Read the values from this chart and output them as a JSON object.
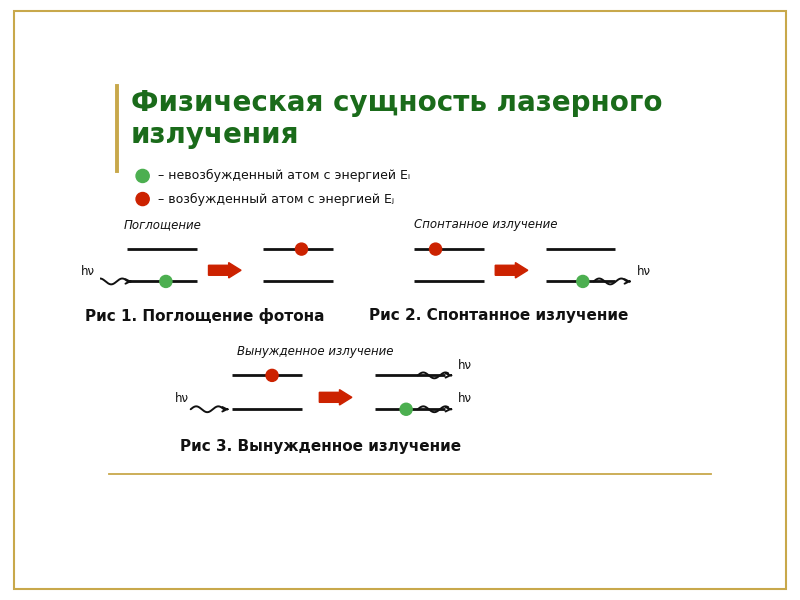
{
  "title_line1": "Физическая сущность лазерного",
  "title_line2": "излучения",
  "title_color": "#1a6b1a",
  "title_fontsize": 20,
  "legend1_text": " – невозбужденный атом с энергией Eᵢ",
  "legend2_text": " – возбужденный атом с энергией Eⱼ",
  "fig1_label": "Поглощение",
  "fig1_caption": "Рис 1. Поглощение фотона",
  "fig2_label": "Спонтанное излучение",
  "fig2_caption": "Рис 2. Спонтанное излучение",
  "fig3_label": "Вынужденное излучение",
  "fig3_caption": "Рис 3. Вынужденное излучение",
  "green_color": "#4caf50",
  "red_color": "#cc2200",
  "arrow_color": "#cc2200",
  "line_color": "#111111",
  "text_color": "#111111",
  "bg_color": "#ffffff",
  "border_color": "#c8a84b",
  "hv_text": "hν",
  "caption_fontsize": 11,
  "label_fontsize": 8.5
}
